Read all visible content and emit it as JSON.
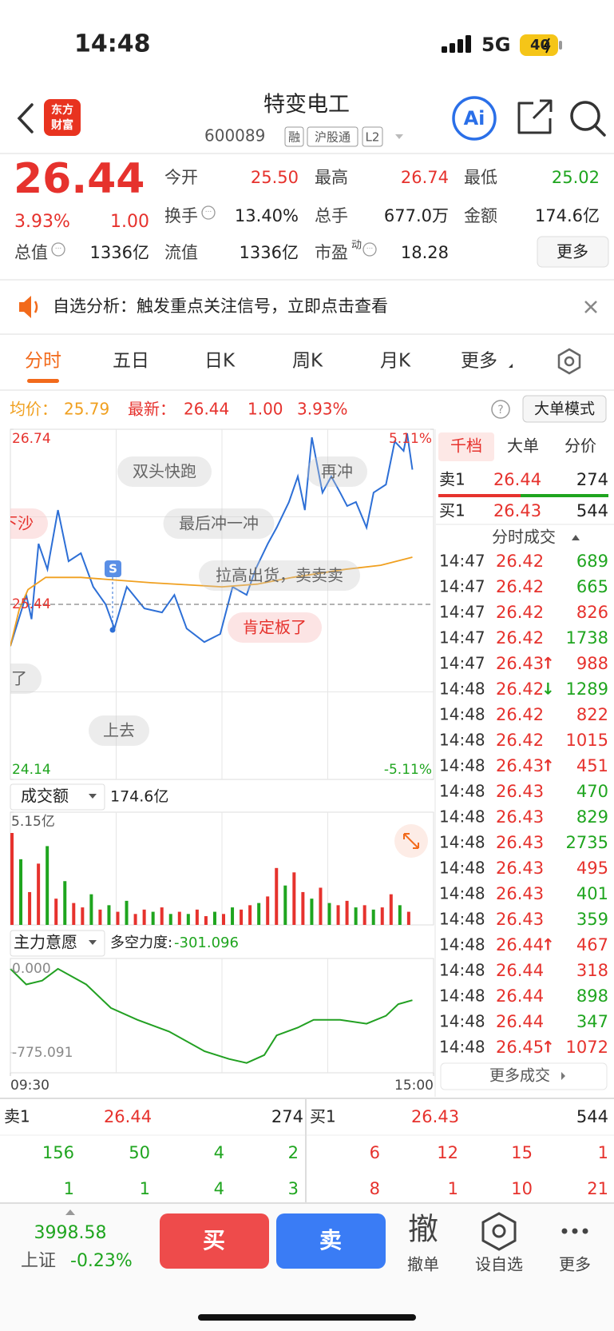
{
  "status": {
    "time": "14:48",
    "network": "5G",
    "battery": "40"
  },
  "header": {
    "logo": [
      "东方",
      "财富"
    ],
    "title": "特变电工",
    "code": "600089",
    "tags": [
      "融",
      "沪股通",
      "L2"
    ],
    "ai": "Ai"
  },
  "quote": {
    "price": "26.44",
    "change_pct": "3.93%",
    "change": "1.00",
    "fields": [
      {
        "label": "今开",
        "value": "25.50",
        "tone": "up"
      },
      {
        "label": "最高",
        "value": "26.74",
        "tone": "up"
      },
      {
        "label": "最低",
        "value": "25.02",
        "tone": "down"
      },
      {
        "label": "换手",
        "value": "13.40%",
        "tone": "flat",
        "info": true
      },
      {
        "label": "总手",
        "value": "677.0万",
        "tone": "flat"
      },
      {
        "label": "金额",
        "value": "174.6亿",
        "tone": "flat"
      },
      {
        "label": "总值",
        "value": "1336亿",
        "tone": "flat",
        "info": true
      },
      {
        "label": "流值",
        "value": "1336亿",
        "tone": "flat"
      },
      {
        "label": "市盈",
        "sup": "动",
        "value": "18.28",
        "tone": "flat",
        "info": true
      }
    ],
    "more": "更多"
  },
  "notice": "自选分析：触发重点关注信号，立即点击查看",
  "tabs": {
    "items": [
      "分时",
      "五日",
      "日K",
      "周K",
      "月K",
      "更多"
    ],
    "active": 0
  },
  "summary": {
    "avg_label": "均价：",
    "avg": "25.79",
    "last_label": "最新：",
    "last": "26.44",
    "change": "1.00",
    "pct": "3.93%",
    "mode": "大单模式"
  },
  "chart_data": [
    {
      "type": "line",
      "xlim": [
        0,
        240
      ],
      "ylim": [
        24.14,
        26.74
      ],
      "yticks": [
        26.74,
        25.44,
        24.14
      ],
      "y2lim": [
        -5.11,
        5.11
      ],
      "y2ticks": [
        {
          "value": 5.11,
          "label": "5.11%"
        },
        {
          "value": -5.11,
          "label": "-5.11%"
        }
      ],
      "series": [
        {
          "color": "#2d6fd6",
          "x": [
            0,
            9,
            12,
            16,
            21,
            27,
            33,
            40,
            47,
            54,
            59,
            66,
            76,
            86,
            93,
            100,
            110,
            119,
            126,
            134,
            139,
            146,
            151,
            158,
            163,
            167,
            171,
            177,
            182,
            187,
            191,
            196,
            202,
            206,
            213,
            218,
            223,
            225,
            228
          ],
          "values": [
            25.13,
            25.51,
            25.33,
            25.89,
            25.7,
            26.14,
            25.76,
            25.82,
            25.57,
            25.44,
            25.26,
            25.57,
            25.41,
            25.38,
            25.51,
            25.26,
            25.16,
            25.22,
            25.57,
            25.51,
            25.7,
            25.89,
            26.01,
            26.2,
            26.39,
            26.14,
            26.68,
            26.27,
            26.39,
            26.27,
            26.17,
            26.2,
            26.01,
            26.27,
            26.33,
            26.65,
            26.58,
            26.71,
            26.44
          ]
        },
        {
          "color": "#f0a020",
          "x": [
            0,
            5,
            10,
            20,
            40,
            80,
            120,
            140,
            160,
            190,
            210,
            228
          ],
          "values": [
            25.13,
            25.4,
            25.55,
            25.64,
            25.64,
            25.6,
            25.57,
            25.59,
            25.64,
            25.7,
            25.73,
            25.79
          ]
        }
      ],
      "annotations": [
        "双头快跑",
        "再冲",
        "最后冲一冲",
        "拉高出货，卖卖卖",
        "肯定板了",
        "下沙",
        "来了",
        "上去"
      ],
      "marker": "S"
    },
    {
      "type": "bar",
      "label": "成交额",
      "total": "174.6亿",
      "xlim": [
        0,
        240
      ],
      "ylim": [
        0,
        5.15
      ],
      "yticks": [
        {
          "value": 5.15,
          "label": "5.15亿"
        }
      ],
      "x": [
        0,
        5,
        10,
        15,
        20,
        25,
        30,
        35,
        40,
        45,
        50,
        55,
        60,
        65,
        70,
        75,
        80,
        85,
        90,
        95,
        100,
        105,
        110,
        115,
        120,
        125,
        130,
        135,
        140,
        145,
        150,
        155,
        160,
        165,
        170,
        175,
        180,
        185,
        190,
        195,
        200,
        205,
        210,
        215,
        220,
        225
      ],
      "values": [
        4.2,
        3.0,
        1.5,
        2.8,
        3.6,
        1.2,
        2.0,
        1.0,
        0.8,
        1.4,
        0.7,
        0.9,
        0.6,
        1.1,
        0.5,
        0.7,
        0.6,
        0.8,
        0.5,
        0.6,
        0.5,
        0.7,
        0.4,
        0.6,
        0.5,
        0.8,
        0.7,
        0.9,
        1.0,
        1.3,
        2.6,
        1.8,
        2.4,
        1.5,
        1.2,
        1.7,
        1.0,
        0.9,
        1.1,
        0.8,
        0.9,
        0.7,
        0.8,
        1.4,
        0.9,
        0.6
      ],
      "up": [
        true,
        false,
        true,
        true,
        false,
        true,
        false,
        true,
        true,
        false,
        true,
        false,
        true,
        false,
        true,
        true,
        false,
        true,
        false,
        true,
        false,
        true,
        true,
        false,
        true,
        false,
        true,
        true,
        false,
        true,
        true,
        false,
        true,
        true,
        false,
        true,
        false,
        true,
        true,
        false,
        true,
        false,
        true,
        true,
        false,
        true
      ]
    },
    {
      "type": "line",
      "label": "主力意愿",
      "metric_label": "多空力度:",
      "metric": "-301.096",
      "xlim": [
        0,
        240
      ],
      "ylim": [
        -960,
        95
      ],
      "yticks": [
        {
          "value": 0,
          "label": "0.000"
        },
        -775.091
      ],
      "xticks": [
        {
          "value": 0,
          "label": "09:30"
        },
        {
          "value": 240,
          "label": "15:00"
        }
      ],
      "series": [
        {
          "color": "#22a022",
          "x": [
            0,
            9,
            18,
            27,
            43,
            57,
            72,
            90,
            110,
            124,
            134,
            144,
            151,
            163,
            172,
            187,
            202,
            213,
            220,
            228
          ],
          "values": [
            0,
            -145,
            -109,
            0,
            -145,
            -362,
            -471,
            -579,
            -760,
            -832,
            -869,
            -796,
            -615,
            -543,
            -471,
            -471,
            -507,
            -434,
            -326,
            -290
          ]
        }
      ]
    }
  ],
  "panel": {
    "tabs": [
      "千档",
      "大单",
      "分价"
    ],
    "active": 0,
    "ask": {
      "label": "卖1",
      "price": "26.44",
      "volume": "274"
    },
    "bid": {
      "label": "买1",
      "price": "26.43",
      "volume": "544"
    },
    "trades_title": "分时成交",
    "trades": [
      {
        "time": "14:47",
        "price": "26.42",
        "volume": "689",
        "up": false
      },
      {
        "time": "14:47",
        "price": "26.42",
        "volume": "665",
        "up": false
      },
      {
        "time": "14:47",
        "price": "26.42",
        "volume": "826",
        "up": true
      },
      {
        "time": "14:47",
        "price": "26.42",
        "volume": "1738",
        "up": false
      },
      {
        "time": "14:47",
        "price": "26.43",
        "arrow": {
          "text": "↑",
          "up": true
        },
        "volume": "988",
        "up": true
      },
      {
        "time": "14:48",
        "price": "26.42",
        "arrow": {
          "text": "↓",
          "up": false
        },
        "volume": "1289",
        "up": false
      },
      {
        "time": "14:48",
        "price": "26.42",
        "volume": "822",
        "up": true
      },
      {
        "time": "14:48",
        "price": "26.42",
        "volume": "1015",
        "up": true
      },
      {
        "time": "14:48",
        "price": "26.43",
        "arrow": {
          "text": "↑",
          "up": true
        },
        "volume": "451",
        "up": true
      },
      {
        "time": "14:48",
        "price": "26.43",
        "volume": "470",
        "up": false
      },
      {
        "time": "14:48",
        "price": "26.43",
        "volume": "829",
        "up": false
      },
      {
        "time": "14:48",
        "price": "26.43",
        "volume": "2735",
        "up": false
      },
      {
        "time": "14:48",
        "price": "26.43",
        "volume": "495",
        "up": true
      },
      {
        "time": "14:48",
        "price": "26.43",
        "volume": "401",
        "up": false
      },
      {
        "time": "14:48",
        "price": "26.43",
        "volume": "359",
        "up": false
      },
      {
        "time": "14:48",
        "price": "26.44",
        "arrow": {
          "text": "↑",
          "up": true
        },
        "volume": "467",
        "up": true
      },
      {
        "time": "14:48",
        "price": "26.44",
        "volume": "318",
        "up": true
      },
      {
        "time": "14:48",
        "price": "26.44",
        "volume": "898",
        "up": false
      },
      {
        "time": "14:48",
        "price": "26.44",
        "volume": "347",
        "up": false
      },
      {
        "time": "14:48",
        "price": "26.45",
        "arrow": {
          "text": "↑",
          "up": true
        },
        "volume": "1072",
        "up": true
      }
    ],
    "more": "更多成交"
  },
  "book": {
    "ask": {
      "label": "卖1",
      "price": "26.44",
      "volume": "274",
      "rows": [
        [
          156,
          50,
          4,
          2
        ],
        [
          1,
          1,
          4,
          3
        ]
      ]
    },
    "bid": {
      "label": "买1",
      "price": "26.43",
      "volume": "544",
      "rows": [
        [
          6,
          12,
          15,
          1
        ],
        [
          8,
          1,
          10,
          21
        ]
      ]
    }
  },
  "footer": {
    "index": "3998.58",
    "index_name": "上证",
    "index_change": "-0.23%",
    "buy": "买",
    "sell": "卖",
    "cancel_icon": "撤",
    "cancel": "撤单",
    "watch": "设自选",
    "more": "更多"
  }
}
